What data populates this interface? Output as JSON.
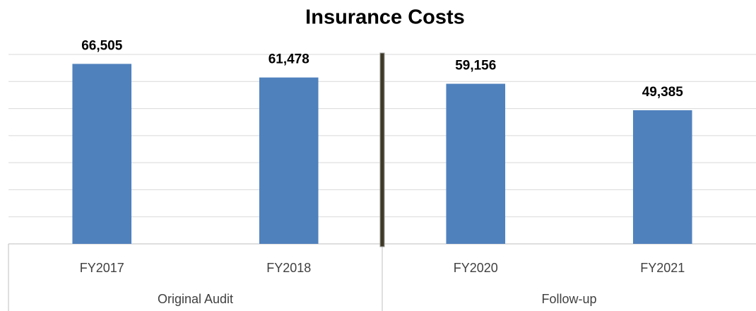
{
  "chart_data": {
    "type": "bar",
    "title": "Insurance Costs",
    "categories": [
      "FY2017",
      "FY2018",
      "FY2020",
      "FY2021"
    ],
    "values": [
      66505,
      61478,
      59156,
      49385
    ],
    "value_labels": [
      "66,505",
      "61,478",
      "59,156",
      "49,385"
    ],
    "color": "#4f81bd",
    "groups": [
      {
        "name": "Original Audit",
        "span": 2
      },
      {
        "name": "Follow-up",
        "span": 2
      }
    ],
    "ylim": [
      0,
      70000
    ],
    "yticks": [
      0,
      10000,
      20000,
      30000,
      40000,
      50000,
      60000,
      70000
    ],
    "grid": true
  }
}
